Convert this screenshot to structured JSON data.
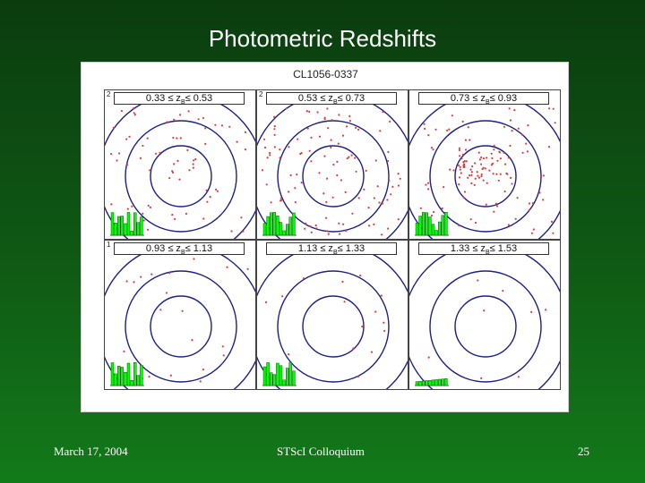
{
  "slide": {
    "title": "Photometric Redshifts",
    "footer_date": "March 17, 2004",
    "footer_center": "STScI Colloquium",
    "page_number": "25"
  },
  "figure": {
    "cluster": "CL1056-0337",
    "panels": [
      {
        "label": "2",
        "lo": "0.33",
        "hi": "0.53",
        "points": 70
      },
      {
        "label": "2",
        "lo": "0.53",
        "hi": "0.73",
        "points": 110
      },
      {
        "label": "",
        "lo": "0.73",
        "hi": "0.93",
        "points": 130
      },
      {
        "label": "1",
        "lo": "0.93",
        "hi": "1.13",
        "points": 20
      },
      {
        "label": "",
        "lo": "1.13",
        "hi": "1.33",
        "points": 15
      },
      {
        "label": "",
        "lo": "1.33",
        "hi": "1.53",
        "points": 8
      }
    ]
  },
  "colors": {
    "background_top": "#0b3c0f",
    "background_bottom": "#137a1a",
    "point": "#e23b3b",
    "ring": "#1d1f8a",
    "histogram": "#00ff00"
  }
}
